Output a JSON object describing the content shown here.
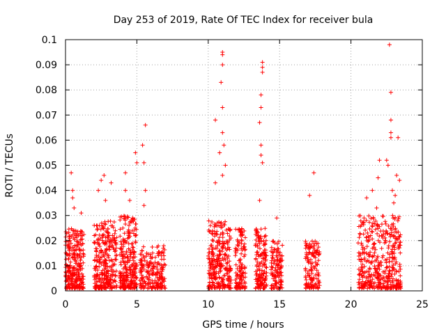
{
  "chart_data": {
    "type": "scatter",
    "title": "Day 253 of 2019, Rate Of TEC Index for receiver bula",
    "xlabel": "GPS time / hours",
    "ylabel": "ROTI / TECUs",
    "xlim": [
      0,
      25
    ],
    "ylim": [
      0,
      0.1
    ],
    "x_ticks": [
      "0",
      "5",
      "10",
      "15",
      "20",
      "25"
    ],
    "y_ticks": [
      "0",
      "0.01",
      "0.02",
      "0.03",
      "0.04",
      "0.05",
      "0.06",
      "0.07",
      "0.08",
      "0.09",
      "0.1"
    ],
    "x_tick_values": [
      0,
      5,
      10,
      15,
      20,
      25
    ],
    "y_tick_values": [
      0,
      0.01,
      0.02,
      0.03,
      0.04,
      0.05,
      0.06,
      0.07,
      0.08,
      0.09,
      0.1
    ],
    "grid": true,
    "marker": "+",
    "color": "#ff0000",
    "clusters": [
      {
        "x_range": [
          0.0,
          1.3
        ],
        "y_max": 0.025,
        "n": 260
      },
      {
        "x_range": [
          2.0,
          3.6
        ],
        "y_max": 0.028,
        "n": 300
      },
      {
        "x_range": [
          3.8,
          5.0
        ],
        "y_max": 0.03,
        "n": 260
      },
      {
        "x_range": [
          5.2,
          7.0
        ],
        "y_max": 0.018,
        "n": 200
      },
      {
        "x_range": [
          10.0,
          11.6
        ],
        "y_max": 0.028,
        "n": 280
      },
      {
        "x_range": [
          11.9,
          12.6
        ],
        "y_max": 0.025,
        "n": 120
      },
      {
        "x_range": [
          13.3,
          14.1
        ],
        "y_max": 0.025,
        "n": 150
      },
      {
        "x_range": [
          14.4,
          15.2
        ],
        "y_max": 0.02,
        "n": 120
      },
      {
        "x_range": [
          16.8,
          17.8
        ],
        "y_max": 0.02,
        "n": 130
      },
      {
        "x_range": [
          20.5,
          23.5
        ],
        "y_max": 0.03,
        "n": 420
      }
    ],
    "outliers": [
      [
        0.4,
        0.047
      ],
      [
        0.5,
        0.04
      ],
      [
        0.5,
        0.037
      ],
      [
        1.1,
        0.031
      ],
      [
        0.6,
        0.033
      ],
      [
        2.3,
        0.04
      ],
      [
        2.5,
        0.044
      ],
      [
        2.7,
        0.046
      ],
      [
        3.2,
        0.043
      ],
      [
        2.8,
        0.036
      ],
      [
        4.2,
        0.047
      ],
      [
        4.2,
        0.04
      ],
      [
        4.5,
        0.036
      ],
      [
        4.9,
        0.055
      ],
      [
        5.0,
        0.051
      ],
      [
        5.4,
        0.058
      ],
      [
        5.5,
        0.051
      ],
      [
        5.6,
        0.066
      ],
      [
        5.6,
        0.04
      ],
      [
        5.5,
        0.034
      ],
      [
        10.5,
        0.068
      ],
      [
        10.5,
        0.043
      ],
      [
        10.8,
        0.055
      ],
      [
        11.0,
        0.095
      ],
      [
        11.0,
        0.094
      ],
      [
        11.0,
        0.09
      ],
      [
        10.9,
        0.083
      ],
      [
        11.0,
        0.073
      ],
      [
        11.0,
        0.063
      ],
      [
        11.1,
        0.058
      ],
      [
        11.2,
        0.05
      ],
      [
        11.0,
        0.046
      ],
      [
        13.6,
        0.036
      ],
      [
        13.8,
        0.091
      ],
      [
        13.8,
        0.089
      ],
      [
        13.8,
        0.087
      ],
      [
        13.7,
        0.078
      ],
      [
        13.7,
        0.073
      ],
      [
        13.6,
        0.067
      ],
      [
        13.7,
        0.058
      ],
      [
        13.7,
        0.054
      ],
      [
        13.8,
        0.051
      ],
      [
        14.8,
        0.029
      ],
      [
        17.4,
        0.047
      ],
      [
        17.1,
        0.038
      ],
      [
        22.5,
        0.052
      ],
      [
        22.0,
        0.052
      ],
      [
        21.9,
        0.045
      ],
      [
        22.6,
        0.05
      ],
      [
        22.7,
        0.098
      ],
      [
        22.8,
        0.079
      ],
      [
        22.8,
        0.068
      ],
      [
        22.8,
        0.063
      ],
      [
        22.8,
        0.061
      ],
      [
        23.3,
        0.061
      ],
      [
        23.2,
        0.046
      ],
      [
        23.4,
        0.044
      ],
      [
        23.1,
        0.038
      ],
      [
        22.9,
        0.04
      ],
      [
        21.5,
        0.04
      ],
      [
        21.1,
        0.037
      ],
      [
        21.8,
        0.033
      ],
      [
        23.0,
        0.035
      ]
    ]
  }
}
